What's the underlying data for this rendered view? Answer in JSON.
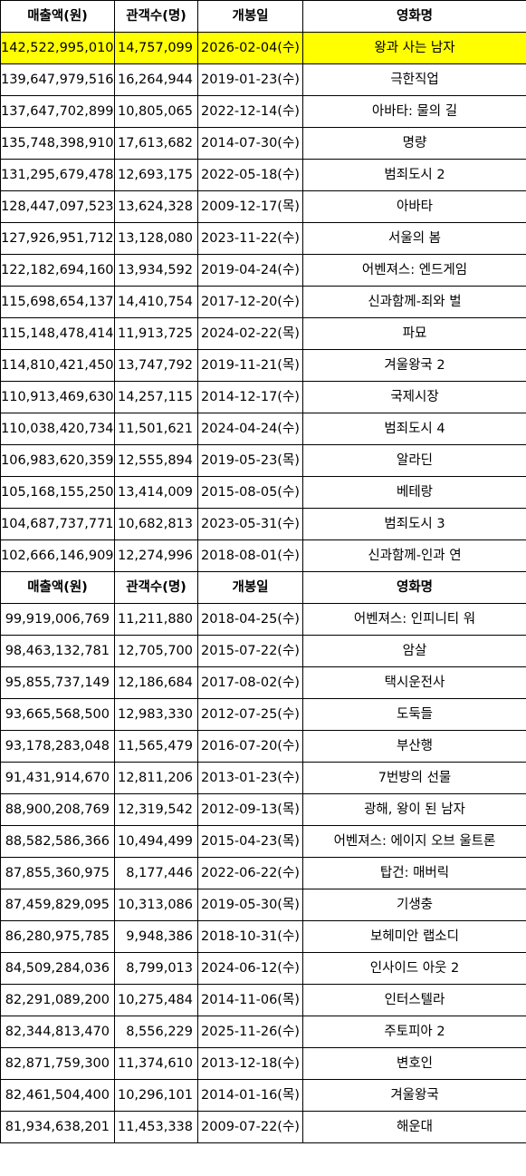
{
  "highlight_color": "#ffff00",
  "headers": [
    "매출액(원)",
    "관객수(명)",
    "개봉일",
    "영화명"
  ],
  "section1": [
    {
      "revenue": "142,522,995,010",
      "audience": "14,757,099",
      "release": "2026-02-04(수)",
      "title": "왕과 사는 남자",
      "highlight": true
    },
    {
      "revenue": "139,647,979,516",
      "audience": "16,264,944",
      "release": "2019-01-23(수)",
      "title": "극한직업"
    },
    {
      "revenue": "137,647,702,899",
      "audience": "10,805,065",
      "release": "2022-12-14(수)",
      "title": "아바타: 물의 길"
    },
    {
      "revenue": "135,748,398,910",
      "audience": "17,613,682",
      "release": "2014-07-30(수)",
      "title": "명량"
    },
    {
      "revenue": "131,295,679,478",
      "audience": "12,693,175",
      "release": "2022-05-18(수)",
      "title": "범죄도시 2"
    },
    {
      "revenue": "128,447,097,523",
      "audience": "13,624,328",
      "release": "2009-12-17(목)",
      "title": "아바타"
    },
    {
      "revenue": "127,926,951,712",
      "audience": "13,128,080",
      "release": "2023-11-22(수)",
      "title": "서울의 봄"
    },
    {
      "revenue": "122,182,694,160",
      "audience": "13,934,592",
      "release": "2019-04-24(수)",
      "title": "어벤져스: 엔드게임"
    },
    {
      "revenue": "115,698,654,137",
      "audience": "14,410,754",
      "release": "2017-12-20(수)",
      "title": "신과함께-죄와 벌"
    },
    {
      "revenue": "115,148,478,414",
      "audience": "11,913,725",
      "release": "2024-02-22(목)",
      "title": "파묘"
    },
    {
      "revenue": "114,810,421,450",
      "audience": "13,747,792",
      "release": "2019-11-21(목)",
      "title": "겨울왕국 2"
    },
    {
      "revenue": "110,913,469,630",
      "audience": "14,257,115",
      "release": "2014-12-17(수)",
      "title": "국제시장"
    },
    {
      "revenue": "110,038,420,734",
      "audience": "11,501,621",
      "release": "2024-04-24(수)",
      "title": "범죄도시 4"
    },
    {
      "revenue": "106,983,620,359",
      "audience": "12,555,894",
      "release": "2019-05-23(목)",
      "title": "알라딘"
    },
    {
      "revenue": "105,168,155,250",
      "audience": "13,414,009",
      "release": "2015-08-05(수)",
      "title": "베테랑"
    },
    {
      "revenue": "104,687,737,771",
      "audience": "10,682,813",
      "release": "2023-05-31(수)",
      "title": "범죄도시 3"
    },
    {
      "revenue": "102,666,146,909",
      "audience": "12,274,996",
      "release": "2018-08-01(수)",
      "title": "신과함께-인과 연"
    }
  ],
  "section2": [
    {
      "revenue": "99,919,006,769",
      "audience": "11,211,880",
      "release": "2018-04-25(수)",
      "title": "어벤져스: 인피니티 워"
    },
    {
      "revenue": "98,463,132,781",
      "audience": "12,705,700",
      "release": "2015-07-22(수)",
      "title": "암살"
    },
    {
      "revenue": "95,855,737,149",
      "audience": "12,186,684",
      "release": "2017-08-02(수)",
      "title": "택시운전사"
    },
    {
      "revenue": "93,665,568,500",
      "audience": "12,983,330",
      "release": "2012-07-25(수)",
      "title": "도둑들"
    },
    {
      "revenue": "93,178,283,048",
      "audience": "11,565,479",
      "release": "2016-07-20(수)",
      "title": "부산행"
    },
    {
      "revenue": "91,431,914,670",
      "audience": "12,811,206",
      "release": "2013-01-23(수)",
      "title": "7번방의 선물"
    },
    {
      "revenue": "88,900,208,769",
      "audience": "12,319,542",
      "release": "2012-09-13(목)",
      "title": "광해, 왕이 된 남자"
    },
    {
      "revenue": "88,582,586,366",
      "audience": "10,494,499",
      "release": "2015-04-23(목)",
      "title": "어벤져스: 에이지 오브 울트론"
    },
    {
      "revenue": "87,855,360,975",
      "audience": "8,177,446",
      "release": "2022-06-22(수)",
      "title": "탑건: 매버릭"
    },
    {
      "revenue": "87,459,829,095",
      "audience": "10,313,086",
      "release": "2019-05-30(목)",
      "title": "기생충"
    },
    {
      "revenue": "86,280,975,785",
      "audience": "9,948,386",
      "release": "2018-10-31(수)",
      "title": "보헤미안 랩소디"
    },
    {
      "revenue": "84,509,284,036",
      "audience": "8,799,013",
      "release": "2024-06-12(수)",
      "title": "인사이드 아웃 2"
    },
    {
      "revenue": "82,291,089,200",
      "audience": "10,275,484",
      "release": "2014-11-06(목)",
      "title": "인터스텔라"
    },
    {
      "revenue": "82,344,813,470",
      "audience": "8,556,229",
      "release": "2025-11-26(수)",
      "title": "주토피아 2"
    },
    {
      "revenue": "82,871,759,300",
      "audience": "11,374,610",
      "release": "2013-12-18(수)",
      "title": "변호인"
    },
    {
      "revenue": "82,461,504,400",
      "audience": "10,296,101",
      "release": "2014-01-16(목)",
      "title": "겨울왕국"
    },
    {
      "revenue": "81,934,638,201",
      "audience": "11,453,338",
      "release": "2009-07-22(수)",
      "title": "해운대"
    }
  ]
}
